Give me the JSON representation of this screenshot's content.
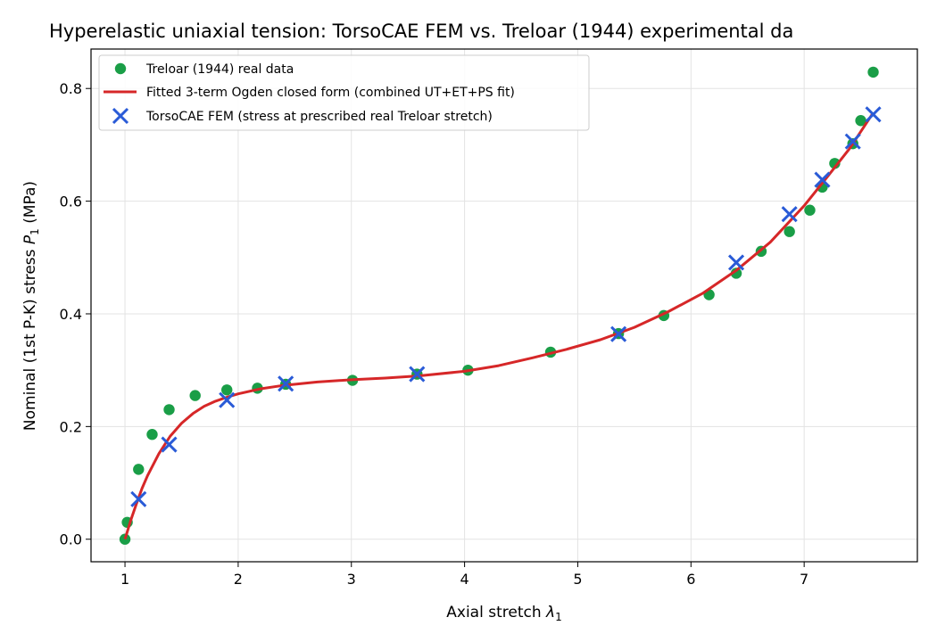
{
  "chart_data": {
    "type": "line",
    "title": "Hyperelastic uniaxial tension: TorsoCAE FEM vs. Treloar (1944) experimental da",
    "xlabel": "Axial stretch λ1",
    "ylabel": "Nominal (1st P-K) stress P1 (MPa)",
    "xlim": [
      0.7,
      8.0
    ],
    "ylim": [
      -0.04,
      0.87
    ],
    "xticks": [
      1,
      2,
      3,
      4,
      5,
      6,
      7
    ],
    "yticks": [
      0.0,
      0.2,
      0.4,
      0.6,
      0.8
    ],
    "xtick_labels": [
      "1",
      "2",
      "3",
      "4",
      "5",
      "6",
      "7"
    ],
    "ytick_labels": [
      "0.0",
      "0.2",
      "0.4",
      "0.6",
      "0.8"
    ],
    "grid": true,
    "legend_position": "top-left",
    "series": [
      {
        "name": "Treloar (1944) real data",
        "kind": "scatter",
        "marker": "circle",
        "color": "#1a9e47",
        "x": [
          1.0,
          1.02,
          1.12,
          1.24,
          1.39,
          1.62,
          1.9,
          2.17,
          2.42,
          3.01,
          3.58,
          4.03,
          4.76,
          5.36,
          5.76,
          6.16,
          6.4,
          6.62,
          6.87,
          7.05,
          7.16,
          7.27,
          7.43,
          7.5,
          7.61
        ],
        "y": [
          0.0,
          0.03,
          0.124,
          0.186,
          0.23,
          0.255,
          0.265,
          0.268,
          0.275,
          0.282,
          0.293,
          0.3,
          0.332,
          0.365,
          0.397,
          0.434,
          0.472,
          0.511,
          0.546,
          0.584,
          0.625,
          0.667,
          0.702,
          0.743,
          0.829
        ]
      },
      {
        "name": "Fitted 3-term Ogden closed form (combined UT+ET+PS fit)",
        "kind": "line",
        "color": "#d62728",
        "x": [
          1.0,
          1.05,
          1.1,
          1.15,
          1.2,
          1.3,
          1.4,
          1.5,
          1.6,
          1.7,
          1.8,
          1.9,
          2.0,
          2.2,
          2.4,
          2.7,
          3.0,
          3.3,
          3.6,
          4.0,
          4.3,
          4.6,
          4.9,
          5.2,
          5.5,
          5.8,
          6.1,
          6.4,
          6.7,
          7.0,
          7.2,
          7.4,
          7.6
        ],
        "y": [
          0.0,
          0.033,
          0.062,
          0.09,
          0.113,
          0.152,
          0.183,
          0.206,
          0.223,
          0.236,
          0.245,
          0.252,
          0.258,
          0.267,
          0.273,
          0.279,
          0.283,
          0.286,
          0.29,
          0.298,
          0.308,
          0.322,
          0.337,
          0.354,
          0.376,
          0.404,
          0.436,
          0.477,
          0.527,
          0.592,
          0.642,
          0.693,
          0.754
        ]
      },
      {
        "name": "TorsoCAE FEM (stress at prescribed real Treloar stretch)",
        "kind": "scatter",
        "marker": "x",
        "color": "#2a5bd7",
        "x": [
          1.12,
          1.39,
          1.9,
          2.42,
          3.58,
          5.36,
          6.4,
          6.87,
          7.16,
          7.43,
          7.61
        ],
        "y": [
          0.071,
          0.168,
          0.247,
          0.276,
          0.293,
          0.364,
          0.491,
          0.577,
          0.638,
          0.706,
          0.754
        ]
      }
    ]
  }
}
